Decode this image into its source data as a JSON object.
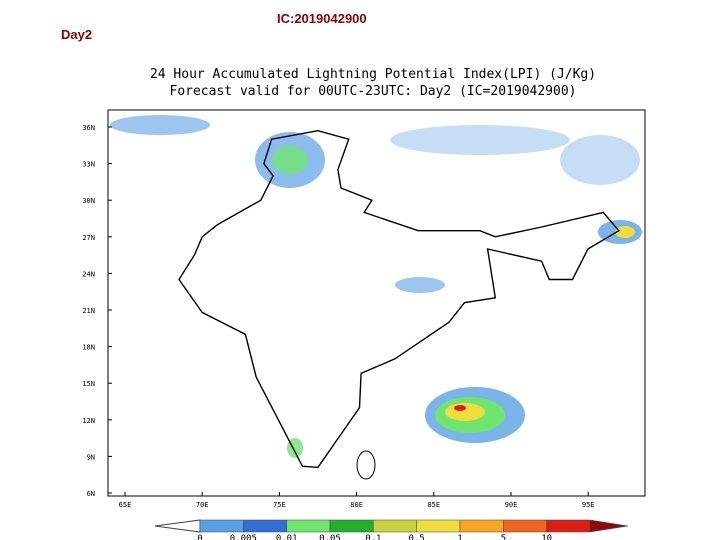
{
  "header": {
    "day": "Day2",
    "ic": "IC:2019042900"
  },
  "map": {
    "title_lines": [
      "24 Hour Accumulated Lightning Potential Index(LPI) (J/Kg)",
      "Forecast valid for 00UTC-23UTC: Day2 (IC=2019042900)"
    ],
    "lat_labels": [
      "36N",
      "33N",
      "30N",
      "27N",
      "24N",
      "21N",
      "18N",
      "15N",
      "12N",
      "9N",
      "6N"
    ],
    "lon_labels": [
      "65E",
      "70E",
      "75E",
      "80E",
      "85E",
      "90E",
      "95E"
    ]
  },
  "colorbar": {
    "labels": [
      "0",
      "0.005",
      "0.01",
      "0.05",
      "0.1",
      "0.5",
      "1",
      "5",
      "10"
    ],
    "colors": [
      "#5aa0e6",
      "#2f6fd6",
      "#6ee66e",
      "#22b02a",
      "#c8d23c",
      "#f0dc3c",
      "#f5a623",
      "#f0641e",
      "#dc1e14",
      "#8c0a0a"
    ]
  }
}
